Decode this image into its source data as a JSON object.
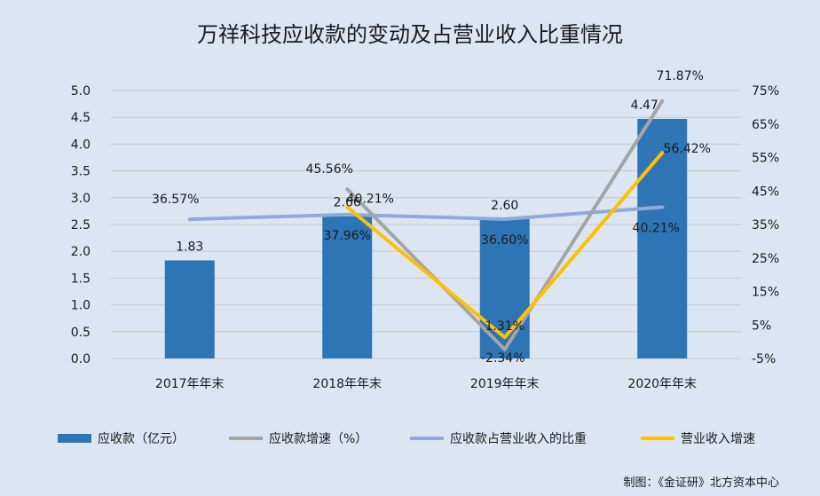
{
  "chart_data": {
    "type": "bar",
    "title": "万祥科技应收款的变动及占营业收入比重情况",
    "source": "制图：《金证研》北方资本中心",
    "categories": [
      "2017年年末",
      "2018年年末",
      "2019年年末",
      "2020年年末"
    ],
    "y_left": {
      "ticks": [
        "0.0",
        "0.5",
        "1.0",
        "1.5",
        "2.0",
        "2.5",
        "3.0",
        "3.5",
        "4.0",
        "4.5",
        "5.0"
      ],
      "range": [
        0,
        5
      ]
    },
    "y_right": {
      "ticks": [
        "-5%",
        "5%",
        "15%",
        "25%",
        "35%",
        "45%",
        "55%",
        "65%",
        "75%"
      ],
      "range": [
        -5,
        75
      ]
    },
    "grid": true,
    "legend_position": "bottom",
    "series": [
      {
        "name": "应收款（亿元）",
        "kind": "bar",
        "axis": "left",
        "color": "#2e75b6",
        "values": [
          1.83,
          2.66,
          2.6,
          4.47
        ],
        "labels": [
          "1.83",
          "2.66",
          "2.60",
          "4.47"
        ]
      },
      {
        "name": "应收款增速（%）",
        "kind": "line",
        "axis": "right",
        "color": "#a5a5a5",
        "values": [
          null,
          45.56,
          -2.34,
          71.87
        ],
        "labels": [
          "",
          "45.56%",
          "-2.34%",
          "71.87%"
        ]
      },
      {
        "name": "应收款占营业收入的比重",
        "kind": "line",
        "axis": "right",
        "color": "#8faadc",
        "values": [
          36.57,
          37.96,
          36.6,
          40.21
        ],
        "labels": [
          "36.57%",
          "37.96%",
          "36.60%",
          "40.21%"
        ]
      },
      {
        "name": "营业收入增速",
        "kind": "line",
        "axis": "right",
        "color": "#ffc000",
        "values": [
          null,
          40.21,
          1.31,
          56.42
        ],
        "labels": [
          "",
          "40.21%",
          "1.31%",
          "56.42%"
        ]
      }
    ]
  }
}
